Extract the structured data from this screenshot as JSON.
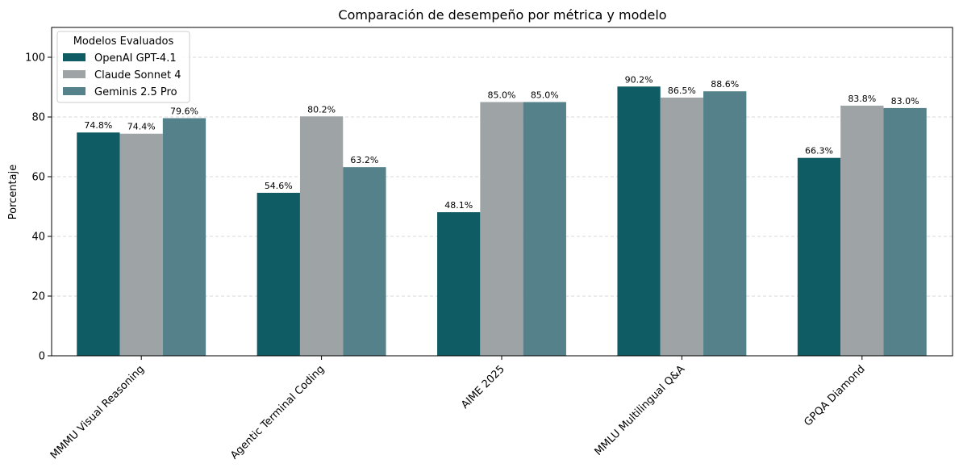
{
  "chart_data": {
    "type": "bar",
    "title": "Comparación de desempeño por métrica y modelo",
    "xlabel": "",
    "ylabel": "Porcentaje",
    "ylim": [
      0,
      110
    ],
    "yticks": [
      0,
      20,
      40,
      60,
      80,
      100
    ],
    "grid": "y-dashed",
    "legend": {
      "title": "Modelos Evaluados",
      "placement": "top-left"
    },
    "categories": [
      "MMMU Visual Reasoning",
      "Agentic Terminal Coding",
      "AIME 2025",
      "MMLU Multilingual Q&A",
      "GPQA Diamond"
    ],
    "series": [
      {
        "name": "OpenAI GPT-4.1",
        "color": "#0f5c65",
        "values": [
          74.8,
          54.6,
          48.1,
          90.2,
          66.3
        ],
        "labels": [
          "74.8%",
          "54.6%",
          "48.1%",
          "90.2%",
          "66.3%"
        ]
      },
      {
        "name": "Claude Sonnet 4",
        "color": "#9ea3a6",
        "values": [
          74.4,
          80.2,
          85.0,
          86.5,
          83.8
        ],
        "labels": [
          "74.4%",
          "80.2%",
          "85.0%",
          "86.5%",
          "83.8%"
        ]
      },
      {
        "name": "Geminis 2.5 Pro",
        "color": "#55818a",
        "values": [
          79.6,
          63.2,
          85.0,
          88.6,
          83.0
        ],
        "labels": [
          "79.6%",
          "63.2%",
          "85.0%",
          "88.6%",
          "83.0%"
        ]
      }
    ]
  }
}
